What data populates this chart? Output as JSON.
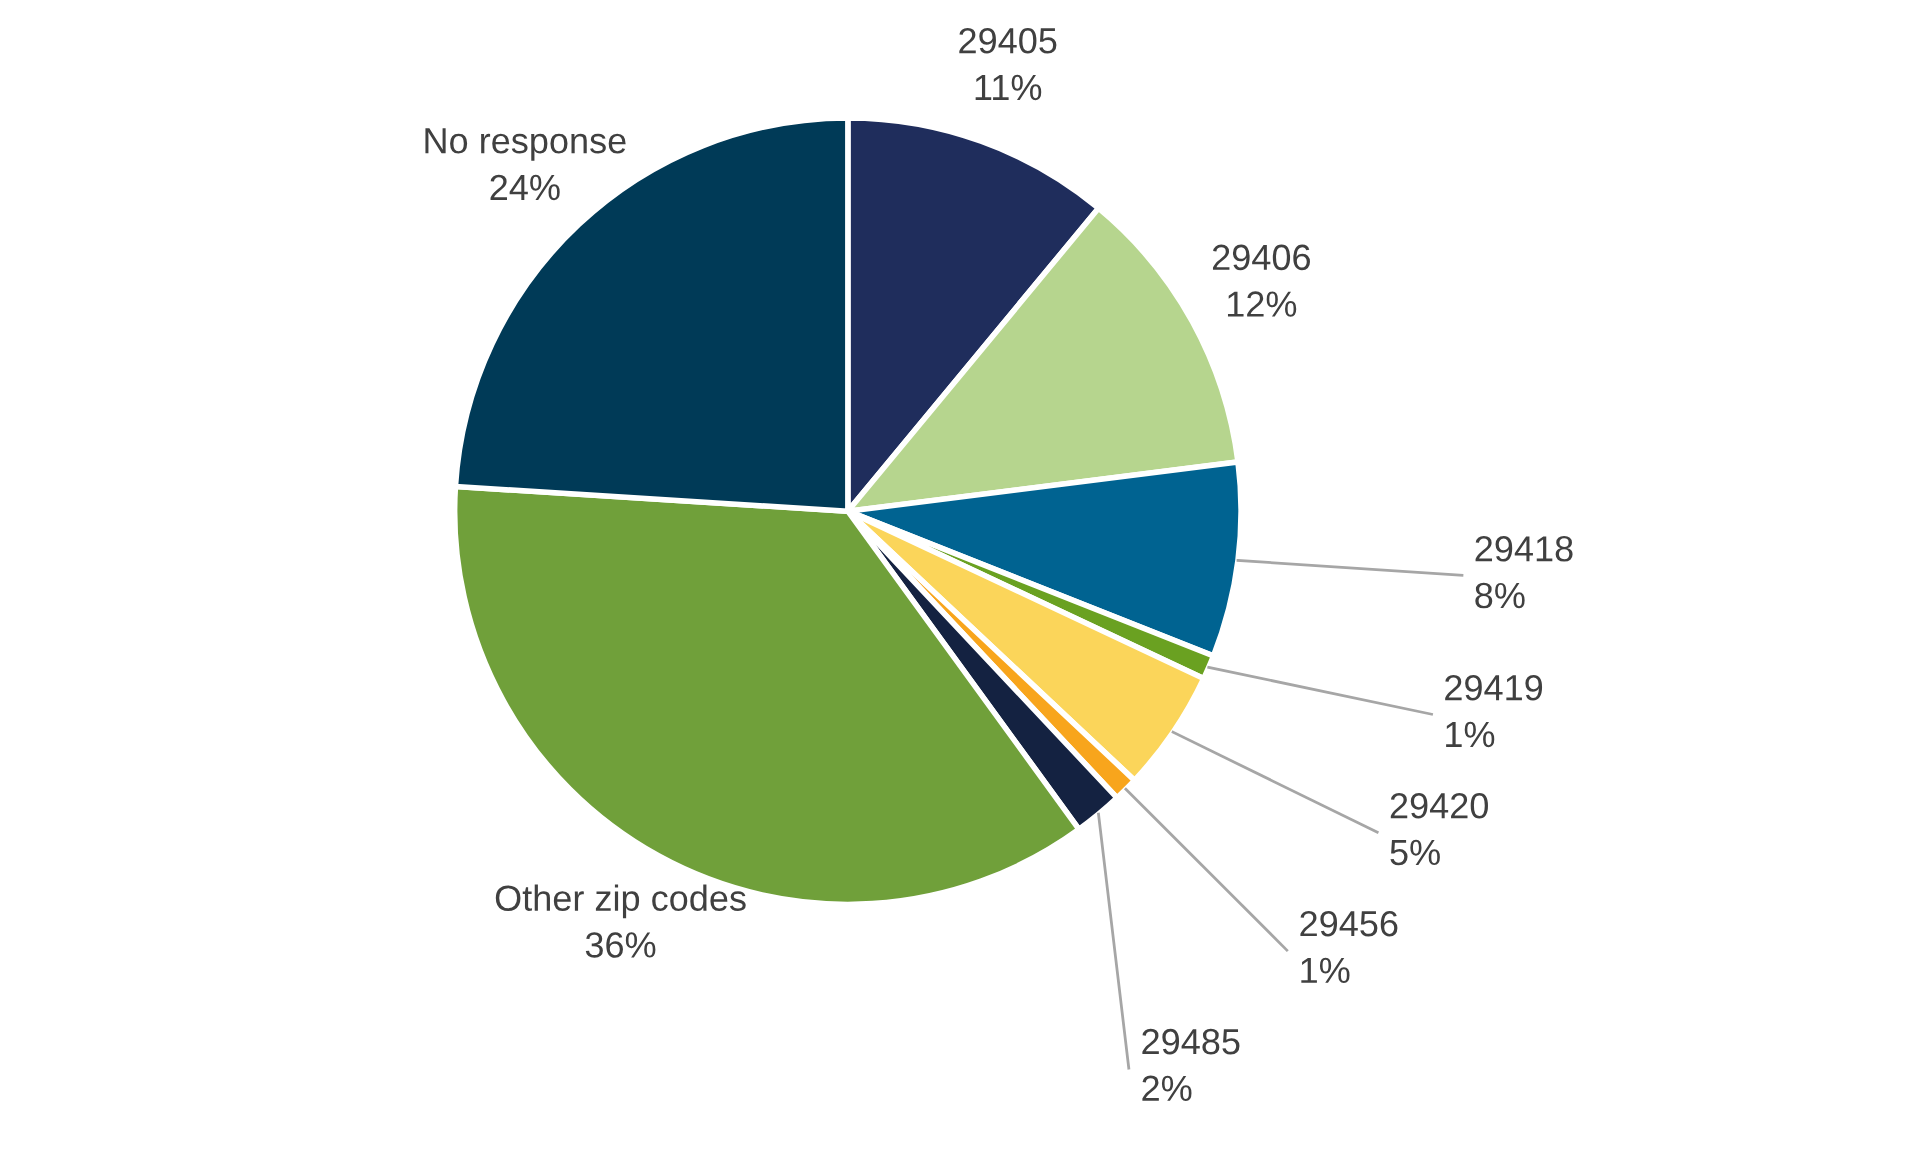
{
  "chart_data": {
    "type": "pie",
    "categories": [
      "29405",
      "29406",
      "29418",
      "29419",
      "29420",
      "29456",
      "29485",
      "Other zip codes",
      "No response"
    ],
    "values": [
      11,
      12,
      8,
      1,
      5,
      1,
      2,
      36,
      24
    ],
    "colors": [
      "#1f2d5c",
      "#b6d58e",
      "#006391",
      "#6aa121",
      "#fbd55a",
      "#f8a51c",
      "#142241",
      "#70a03a",
      "#003a57"
    ],
    "value_labels": [
      "11%",
      "12%",
      "8%",
      "1%",
      "5%",
      "1%",
      "2%",
      "36%",
      "24%"
    ],
    "legend": false
  }
}
